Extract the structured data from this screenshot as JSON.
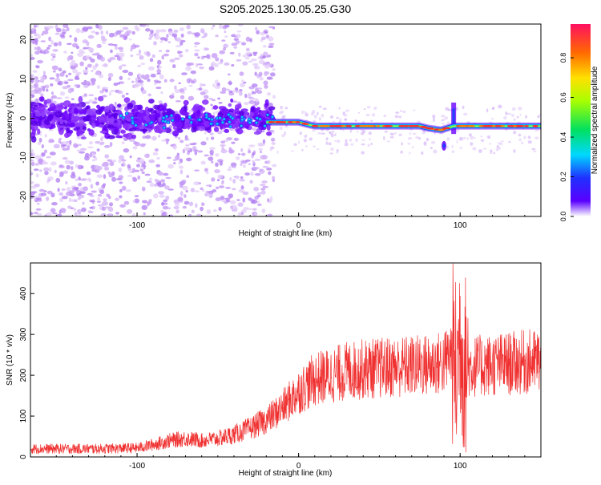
{
  "title": "S205.2025.130.05.25.G30",
  "colors": {
    "snr_line": "#f03030",
    "axis": "#000000",
    "track": "#0a8a2a"
  },
  "colorbar": {
    "label": "Normalized spectral amplitude",
    "ticks": [
      "0.0",
      "0.2",
      "0.4",
      "0.6",
      "0.8"
    ],
    "tick_values": [
      0,
      0.2,
      0.4,
      0.6,
      0.8
    ],
    "range": [
      0,
      0.97
    ]
  },
  "chart_data": [
    {
      "type": "heatmap",
      "title": "S205.2025.130.05.25.G30",
      "xlabel": "Height of straight line (km)",
      "ylabel": "Frequency (Hz)",
      "xlim": [
        -166,
        150
      ],
      "ylim": [
        -25,
        24
      ],
      "xticks": [
        -100,
        0,
        100
      ],
      "xtick_labels": [
        "-100",
        "0",
        "100"
      ],
      "yticks": [
        -20,
        -10,
        0,
        10,
        20
      ],
      "ytick_labels": [
        "-20",
        "-10",
        "0",
        "10",
        "20"
      ],
      "colorbar_label": "Normalized spectral amplitude",
      "dominant_track": {
        "x": [
          -20,
          -10,
          0,
          5,
          10,
          15,
          20,
          30,
          40,
          50,
          60,
          70,
          75,
          80,
          88,
          92,
          96,
          100,
          110,
          120,
          130,
          140,
          150
        ],
        "y": [
          -1,
          -1,
          -1,
          -1.5,
          -2,
          -2,
          -2,
          -2,
          -2,
          -2,
          -2,
          -2,
          -2,
          -2.5,
          -3,
          -2.5,
          -2,
          -2,
          -2,
          -2,
          -2,
          -2,
          -2
        ]
      },
      "noise_region_x": [
        -166,
        -20
      ],
      "spike_x": 96
    },
    {
      "type": "line",
      "xlabel": "Height of straight line (km)",
      "ylabel": "SNR (10 * v/v)",
      "xlim": [
        -166,
        150
      ],
      "ylim": [
        0,
        475
      ],
      "xticks": [
        -100,
        0,
        100
      ],
      "xtick_labels": [
        "-100",
        "0",
        "100"
      ],
      "yticks": [
        0,
        100,
        200,
        300,
        400
      ],
      "ytick_labels": [
        "0",
        "100",
        "200",
        "300",
        "400"
      ],
      "series": [
        {
          "x": [
            -166,
            -150,
            -125,
            -100,
            -90,
            -80,
            -70,
            -60,
            -50,
            -40,
            -30,
            -20,
            -10,
            0,
            10,
            20,
            30,
            40,
            60,
            80,
            90,
            95,
            98,
            100,
            102,
            105,
            110,
            120,
            130,
            140,
            150
          ],
          "y": [
            20,
            20,
            20,
            22,
            30,
            40,
            45,
            40,
            45,
            55,
            70,
            90,
            120,
            160,
            190,
            200,
            210,
            215,
            220,
            225,
            230,
            260,
            200,
            320,
            230,
            220,
            222,
            225,
            228,
            232,
            235
          ]
        }
      ]
    }
  ]
}
